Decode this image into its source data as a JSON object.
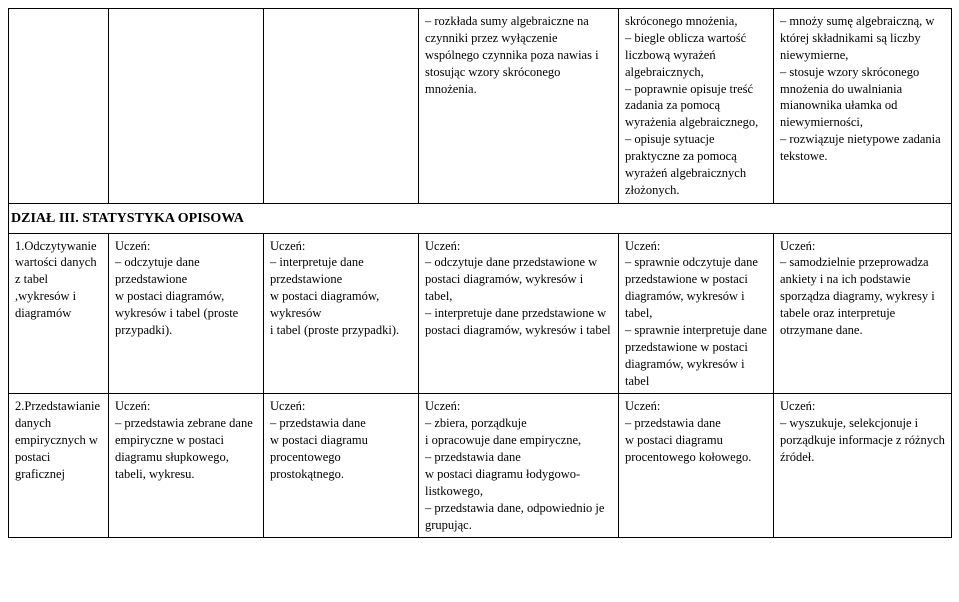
{
  "row1": {
    "c1": "",
    "c2": "",
    "c3": "",
    "c4": "– rozkłada sumy algebraiczne na czynniki przez wyłączenie wspólnego czynnika poza nawias i stosując wzory skróconego mnożenia.",
    "c5": "skróconego mnożenia,\n– biegle oblicza wartość liczbową wyrażeń algebraicznych,\n– poprawnie opisuje treść zadania za pomocą wyrażenia algebraicznego,\n– opisuje sytuacje praktyczne za pomocą wyrażeń algebraicznych złożonych.",
    "c6": "– mnoży sumę algebraiczną, w której składnikami są liczby niewymierne,\n– stosuje wzory skróconego mnożenia do uwalniania mianownika ułamka od niewymierności,\n– rozwiązuje nietypowe zadania tekstowe."
  },
  "section": "DZIAŁ III. STATYSTYKA OPISOWA",
  "row2": {
    "c1": "1.Odczytywanie wartości danych z tabel ,wykresów i diagramów",
    "c2": "Uczeń:\n– odczytuje dane przedstawione\nw postaci diagramów, wykresów i tabel (proste przypadki).",
    "c3": "Uczeń:\n– interpretuje dane przedstawione\nw postaci diagramów, wykresów\ni tabel (proste przypadki).",
    "c4": "Uczeń:\n– odczytuje dane przedstawione w postaci diagramów, wykresów i tabel,\n– interpretuje dane przedstawione w postaci diagramów, wykresów i tabel",
    "c5": "Uczeń:\n– sprawnie odczytuje dane przedstawione w postaci diagramów, wykresów i tabel,\n– sprawnie interpretuje dane przedstawione w postaci diagramów, wykresów i tabel",
    "c6": "Uczeń:\n– samodzielnie przeprowadza ankiety i na ich podstawie sporządza diagramy, wykresy i tabele oraz interpretuje otrzymane dane."
  },
  "row3": {
    "c1": "2.Przedstawianie danych empirycznych w postaci graficznej",
    "c2": "Uczeń:\n– przedstawia zebrane dane empiryczne w postaci diagramu słupkowego, tabeli, wykresu.",
    "c3": "Uczeń:\n– przedstawia dane\nw postaci diagramu procentowego prostokątnego.",
    "c4": "Uczeń:\n– zbiera, porządkuje\ni opracowuje dane empiryczne,\n– przedstawia dane\nw postaci diagramu łodygowo-listkowego,\n– przedstawia dane, odpowiednio je grupując.",
    "c5": "Uczeń:\n– przedstawia dane\nw postaci diagramu procentowego kołowego.",
    "c6": "Uczeń:\n– wyszukuje, selekcjonuje i porządkuje informacje z różnych źródeł."
  }
}
